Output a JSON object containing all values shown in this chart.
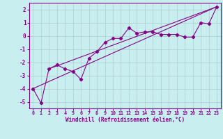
{
  "xlabel": "Windchill (Refroidissement éolien,°C)",
  "bg_color": "#c8eef0",
  "grid_color": "#b0cccc",
  "line_color": "#880088",
  "xlim": [
    -0.5,
    23.5
  ],
  "ylim": [
    -5.5,
    2.5
  ],
  "yticks": [
    -5,
    -4,
    -3,
    -2,
    -1,
    0,
    1,
    2
  ],
  "xticks": [
    0,
    1,
    2,
    3,
    4,
    5,
    6,
    7,
    8,
    9,
    10,
    11,
    12,
    13,
    14,
    15,
    16,
    17,
    18,
    19,
    20,
    21,
    22,
    23
  ],
  "line1_x": [
    0,
    1,
    2,
    3,
    4,
    5,
    6,
    7,
    8,
    9,
    10,
    11,
    12,
    13,
    14,
    15,
    16,
    17,
    18,
    19,
    20,
    21,
    22,
    23
  ],
  "line1_y": [
    -4.0,
    -5.1,
    -2.5,
    -2.2,
    -2.5,
    -2.7,
    -3.3,
    -1.7,
    -1.2,
    -0.5,
    -0.2,
    -0.2,
    0.6,
    0.2,
    0.3,
    0.3,
    0.1,
    0.1,
    0.1,
    -0.1,
    -0.1,
    1.0,
    0.9,
    2.2
  ],
  "line2_x": [
    0,
    23
  ],
  "line2_y": [
    -4.0,
    2.2
  ],
  "line3_x": [
    2,
    23
  ],
  "line3_y": [
    -2.5,
    2.2
  ]
}
